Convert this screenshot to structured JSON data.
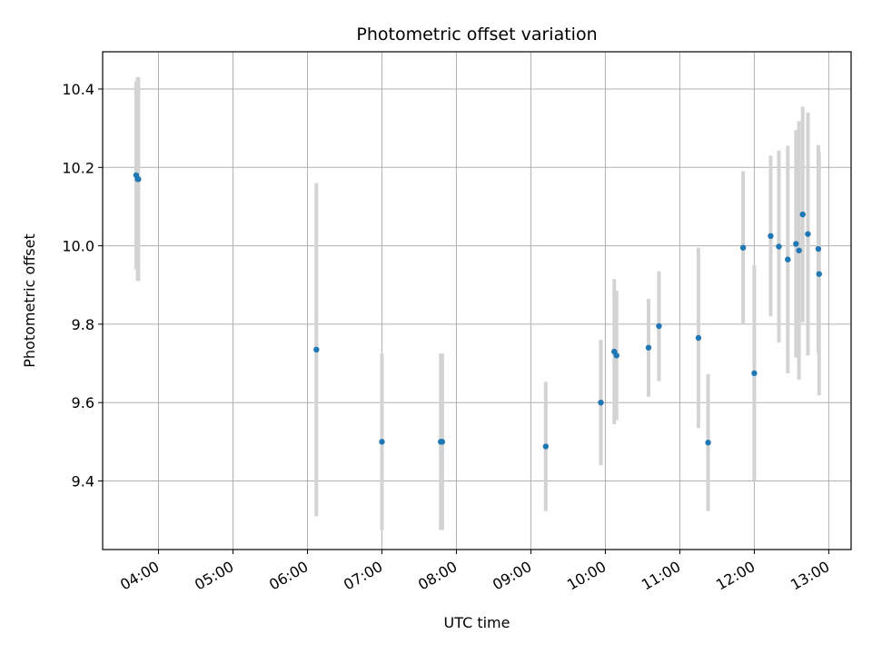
{
  "chart_data": {
    "type": "scatter",
    "title": "Photometric offset variation",
    "xlabel": "UTC time",
    "ylabel": "Photometric offset",
    "x_unit": "hours (UTC)",
    "xlim": [
      3.25,
      13.3
    ],
    "ylim": [
      9.225,
      10.495
    ],
    "x_ticks": [
      4,
      5,
      6,
      7,
      8,
      9,
      10,
      11,
      12,
      13
    ],
    "x_tick_labels": [
      "04:00",
      "05:00",
      "06:00",
      "07:00",
      "08:00",
      "09:00",
      "10:00",
      "11:00",
      "12:00",
      "13:00"
    ],
    "y_ticks": [
      9.4,
      9.6,
      9.8,
      10.0,
      10.2,
      10.4
    ],
    "y_tick_labels": [
      "9.4",
      "9.6",
      "9.8",
      "10.0",
      "10.2",
      "10.4"
    ],
    "grid": true,
    "colors": {
      "point": "#1f77b4",
      "errorbar": "#d3d3d3",
      "grid": "#b0b0b0"
    },
    "points": [
      {
        "x": 3.7,
        "y": 10.18,
        "err": 0.24
      },
      {
        "x": 3.72,
        "y": 10.17,
        "err": 0.26
      },
      {
        "x": 3.73,
        "y": 10.17,
        "err": 0.26
      },
      {
        "x": 6.12,
        "y": 9.735,
        "err": 0.425
      },
      {
        "x": 7.0,
        "y": 9.5,
        "err": 0.225
      },
      {
        "x": 7.79,
        "y": 9.5,
        "err": 0.225
      },
      {
        "x": 7.81,
        "y": 9.5,
        "err": 0.225
      },
      {
        "x": 9.2,
        "y": 9.488,
        "err": 0.165
      },
      {
        "x": 9.94,
        "y": 9.6,
        "err": 0.16
      },
      {
        "x": 10.12,
        "y": 9.73,
        "err": 0.185
      },
      {
        "x": 10.15,
        "y": 9.72,
        "err": 0.165
      },
      {
        "x": 10.58,
        "y": 9.74,
        "err": 0.125
      },
      {
        "x": 10.72,
        "y": 9.795,
        "err": 0.14
      },
      {
        "x": 11.25,
        "y": 9.765,
        "err": 0.23
      },
      {
        "x": 11.38,
        "y": 9.498,
        "err": 0.175
      },
      {
        "x": 11.85,
        "y": 9.995,
        "err": 0.195
      },
      {
        "x": 12.0,
        "y": 9.675,
        "err": 0.275
      },
      {
        "x": 12.22,
        "y": 10.025,
        "err": 0.205
      },
      {
        "x": 12.33,
        "y": 9.998,
        "err": 0.245
      },
      {
        "x": 12.45,
        "y": 9.965,
        "err": 0.29
      },
      {
        "x": 12.56,
        "y": 10.005,
        "err": 0.29
      },
      {
        "x": 12.6,
        "y": 9.988,
        "err": 0.33
      },
      {
        "x": 12.65,
        "y": 10.08,
        "err": 0.275
      },
      {
        "x": 12.72,
        "y": 10.03,
        "err": 0.31
      },
      {
        "x": 12.86,
        "y": 9.992,
        "err": 0.265
      },
      {
        "x": 12.87,
        "y": 9.928,
        "err": 0.31
      }
    ]
  }
}
